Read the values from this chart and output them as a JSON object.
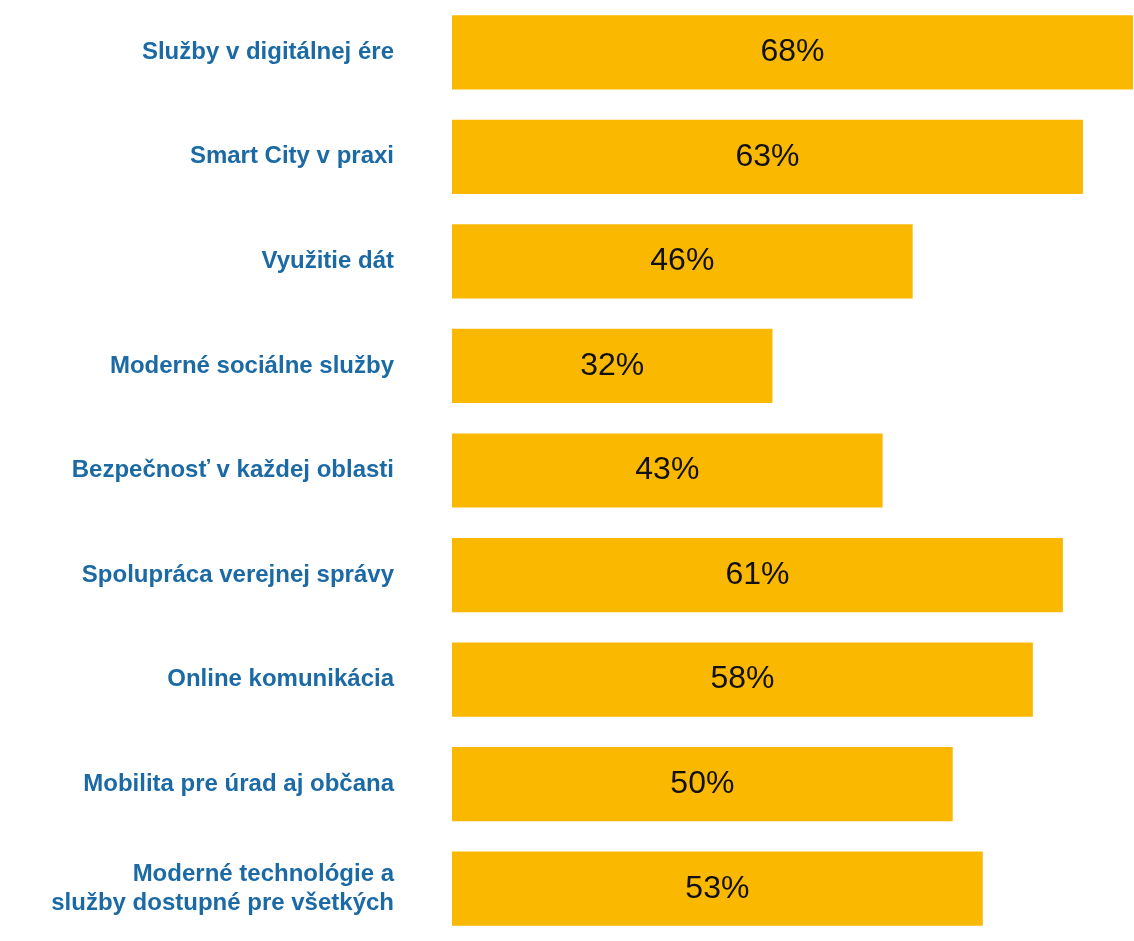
{
  "chart_data": {
    "type": "bar",
    "orientation": "horizontal",
    "categories": [
      "Služby v digitálnej ére",
      "Smart City v praxi",
      "Využitie dát",
      "Moderné sociálne služby",
      "Bezpečnosť v každej oblasti",
      "Spolupráca verejnej správy",
      "Online komunikácia",
      "Mobilita pre úrad aj občana",
      "Moderné technológie a služby dostupné pre všetkých"
    ],
    "values": [
      68,
      63,
      46,
      32,
      43,
      61,
      58,
      50,
      53
    ],
    "value_labels": [
      "68%",
      "63%",
      "46%",
      "32%",
      "43%",
      "61%",
      "58%",
      "50%",
      "53%"
    ],
    "color": "#fab900",
    "xlim": [
      0,
      68
    ],
    "legend": false
  }
}
